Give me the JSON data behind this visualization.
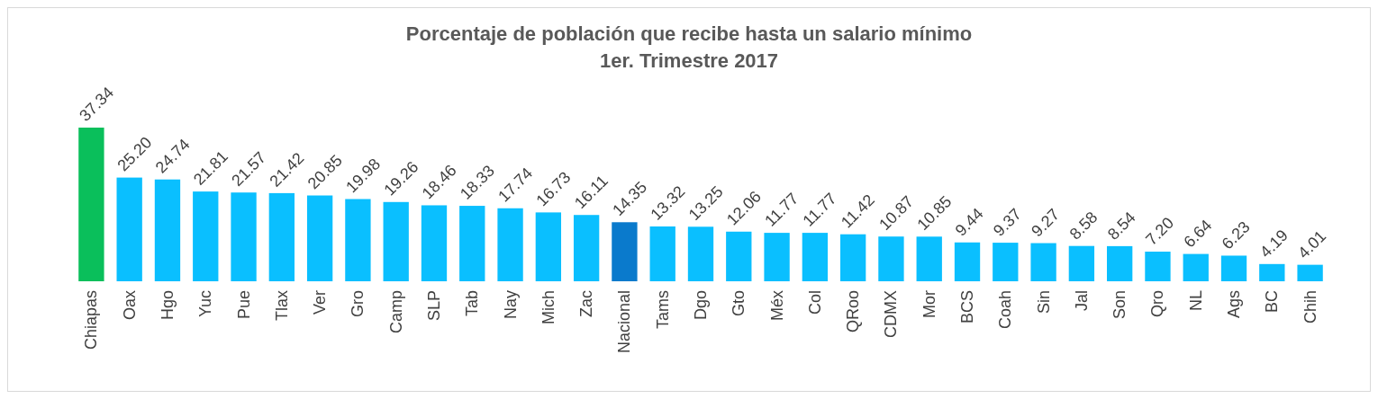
{
  "chart_data": {
    "type": "bar",
    "title": "Porcentaje de población que recibe hasta un salario mínimo",
    "subtitle": "1er. Trimestre 2017",
    "categories": [
      "Chiapas",
      "Oax",
      "Hgo",
      "Yuc",
      "Pue",
      "Tlax",
      "Ver",
      "Gro",
      "Camp",
      "SLP",
      "Tab",
      "Nay",
      "Mich",
      "Zac",
      "Nacional",
      "Tams",
      "Dgo",
      "Gto",
      "Méx",
      "Col",
      "QRoo",
      "CDMX",
      "Mor",
      "BCS",
      "Coah",
      "Sin",
      "Jal",
      "Son",
      "Qro",
      "NL",
      "Ags",
      "BC",
      "Chih"
    ],
    "values": [
      37.34,
      25.2,
      24.74,
      21.81,
      21.57,
      21.42,
      20.85,
      19.98,
      19.26,
      18.46,
      18.33,
      17.74,
      16.73,
      16.11,
      14.35,
      13.32,
      13.25,
      12.06,
      11.77,
      11.77,
      11.42,
      10.87,
      10.85,
      9.44,
      9.37,
      9.27,
      8.58,
      8.54,
      7.2,
      6.64,
      6.23,
      4.19,
      4.01
    ],
    "value_labels": [
      "37.34",
      "25.20",
      "24.74",
      "21.81",
      "21.57",
      "21.42",
      "20.85",
      "19.98",
      "19.26",
      "18.46",
      "18.33",
      "17.74",
      "16.73",
      "16.11",
      "14.35",
      "13.32",
      "13.25",
      "12.06",
      "11.77",
      "11.77",
      "11.42",
      "10.87",
      "10.85",
      "9.44",
      "9.37",
      "9.27",
      "8.58",
      "8.54",
      "7.20",
      "6.64",
      "6.23",
      "4.19",
      "4.01"
    ],
    "colors": [
      "#0abf5b",
      "#0abfff",
      "#0abfff",
      "#0abfff",
      "#0abfff",
      "#0abfff",
      "#0abfff",
      "#0abfff",
      "#0abfff",
      "#0abfff",
      "#0abfff",
      "#0abfff",
      "#0abfff",
      "#0abfff",
      "#0a7acc",
      "#0abfff",
      "#0abfff",
      "#0abfff",
      "#0abfff",
      "#0abfff",
      "#0abfff",
      "#0abfff",
      "#0abfff",
      "#0abfff",
      "#0abfff",
      "#0abfff",
      "#0abfff",
      "#0abfff",
      "#0abfff",
      "#0abfff",
      "#0abfff",
      "#0abfff",
      "#0abfff"
    ]
  }
}
